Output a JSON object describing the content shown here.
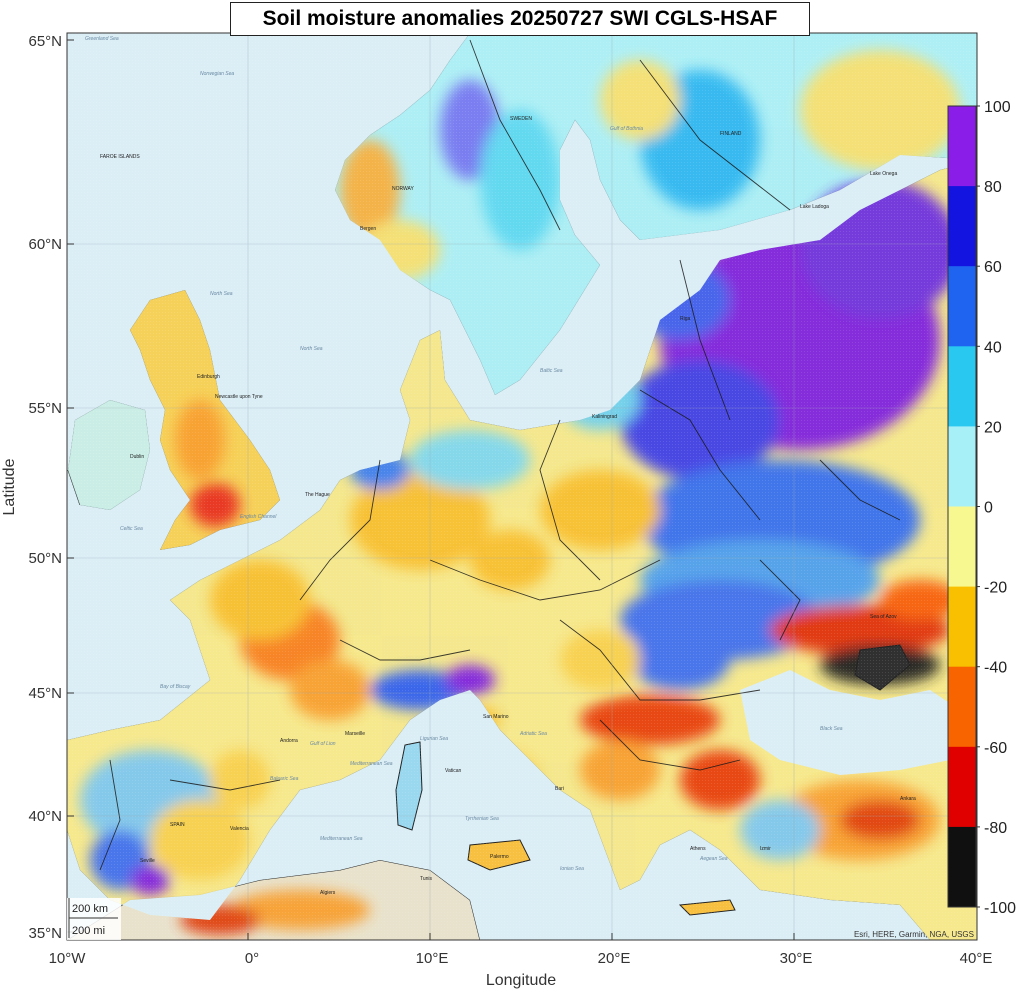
{
  "title": "Soil moisture anomalies 20250727 SWI CGLS-HSAF",
  "axes": {
    "xlabel": "Longitude",
    "ylabel": "Latitude",
    "x_ticks": [
      "10°W",
      "0°",
      "10°E",
      "20°E",
      "30°E",
      "40°E"
    ],
    "y_ticks": [
      "65°N",
      "60°N",
      "55°N",
      "50°N",
      "45°N",
      "40°N",
      "35°N"
    ],
    "lon_range": [
      -10,
      40
    ],
    "lat_range": [
      35,
      65
    ]
  },
  "colorbar": {
    "ticks": [
      "100",
      "80",
      "60",
      "40",
      "20",
      "0",
      "-20",
      "-40",
      "-60",
      "-80",
      "-100"
    ],
    "colors": [
      "#8a1ee8",
      "#1414e0",
      "#1e64f0",
      "#28c8f0",
      "#a8f0f8",
      "#f8f890",
      "#f8c000",
      "#f86400",
      "#e00000",
      "#101010"
    ],
    "range": [
      -100,
      100
    ]
  },
  "scalebar": {
    "km": "200 km",
    "mi": "200 mi"
  },
  "attribution": "Esri, HERE, Garmin, NGA, USGS",
  "map_labels": {
    "seas": [
      "Greenland Sea",
      "Norwegian Sea",
      "North Sea",
      "North Sea",
      "Baltic Sea",
      "Celtic Sea",
      "English Channel",
      "Bay of Biscay",
      "Gulf of Lion",
      "Balearic Sea",
      "Mediterranean Sea",
      "Mediterranean Sea",
      "Tyrrhenian Sea",
      "Ionian Sea",
      "Adriatic Sea",
      "Aegean Sea",
      "Black Sea",
      "Ligurian Sea",
      "Gulf of Bothnia"
    ],
    "places": [
      "FAROE ISLANDS",
      "NORWAY",
      "SWEDEN",
      "FINLAND",
      "Edinburgh",
      "Newcastle upon Tyne",
      "Dublin",
      "The Hague",
      "Kaliningrad",
      "San Marino",
      "Marseille",
      "Vatican",
      "Valencia",
      "Andorra",
      "SPAIN",
      "Seville",
      "Algiers",
      "Tunis",
      "Palermo",
      "Bari",
      "Athens",
      "Ankara",
      "Izmir",
      "Bergen",
      "Riga",
      "Lake Ladoga",
      "Lake Onega",
      "Sea of Azov"
    ]
  }
}
